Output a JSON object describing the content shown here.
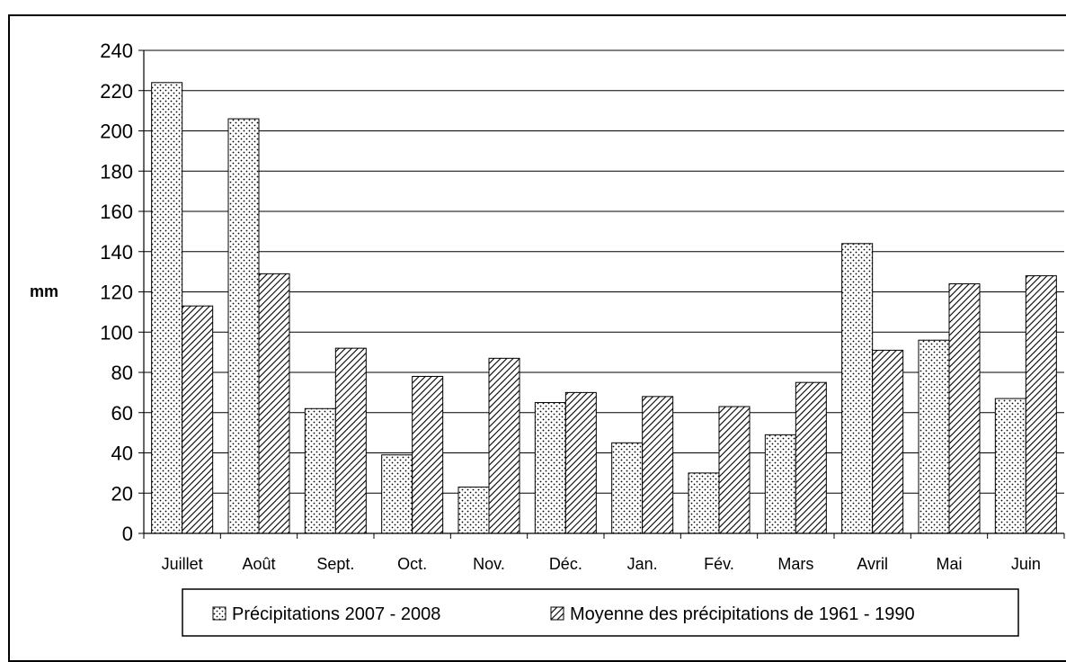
{
  "chart_data": {
    "type": "bar",
    "title": "",
    "xlabel": "",
    "ylabel": "mm",
    "ylim": [
      0,
      240
    ],
    "yticks": [
      0,
      20,
      40,
      60,
      80,
      100,
      120,
      140,
      160,
      180,
      200,
      220,
      240
    ],
    "grid": true,
    "legend_position": "bottom",
    "categories": [
      "Juillet",
      "Août",
      "Sept.",
      "Oct.",
      "Nov.",
      "Déc.",
      "Jan.",
      "Fév.",
      "Mars",
      "Avril",
      "Mai",
      "Juin"
    ],
    "series": [
      {
        "name": "Précipitations 2007 - 2008",
        "pattern": "dots",
        "values": [
          224,
          206,
          62,
          39,
          23,
          65,
          45,
          30,
          49,
          144,
          96,
          67
        ]
      },
      {
        "name": "Moyenne des précipitations de 1961 - 1990",
        "pattern": "diagonal-hatch",
        "values": [
          113,
          129,
          92,
          78,
          87,
          70,
          68,
          63,
          75,
          91,
          124,
          128
        ]
      }
    ]
  }
}
